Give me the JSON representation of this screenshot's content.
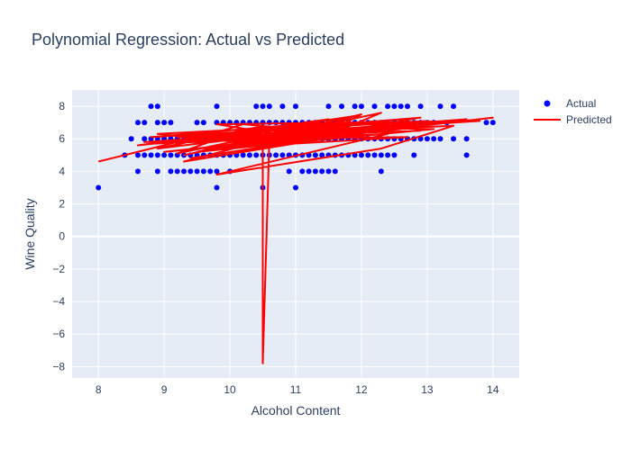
{
  "chart_data": {
    "type": "scatter",
    "title": "Polynomial Regression: Actual vs Predicted",
    "xlabel": "Alcohol Content",
    "ylabel": "Wine Quality",
    "xlim": [
      7.6,
      14.4
    ],
    "ylim": [
      -8.7,
      9.0
    ],
    "xticks": [
      8,
      9,
      10,
      11,
      12,
      13,
      14
    ],
    "yticks": [
      -8,
      -6,
      -4,
      -2,
      0,
      2,
      4,
      6,
      8
    ],
    "grid": true,
    "legend_position": "top-right",
    "series": [
      {
        "name": "Actual",
        "mode": "markers",
        "color": "#0000ff",
        "points": [
          [
            8.0,
            3
          ],
          [
            8.4,
            5
          ],
          [
            8.5,
            6
          ],
          [
            8.6,
            4
          ],
          [
            8.6,
            5
          ],
          [
            8.6,
            7
          ],
          [
            8.7,
            5
          ],
          [
            8.7,
            6
          ],
          [
            8.7,
            7
          ],
          [
            8.8,
            5
          ],
          [
            8.8,
            6
          ],
          [
            8.8,
            8
          ],
          [
            8.9,
            4
          ],
          [
            8.9,
            5
          ],
          [
            8.9,
            6
          ],
          [
            8.9,
            7
          ],
          [
            8.9,
            8
          ],
          [
            9.0,
            5
          ],
          [
            9.0,
            6
          ],
          [
            9.0,
            7
          ],
          [
            9.1,
            5
          ],
          [
            9.1,
            6
          ],
          [
            9.1,
            7
          ],
          [
            9.1,
            4
          ],
          [
            9.2,
            4
          ],
          [
            9.2,
            5
          ],
          [
            9.2,
            6
          ],
          [
            9.3,
            4
          ],
          [
            9.3,
            5
          ],
          [
            9.3,
            6
          ],
          [
            9.4,
            4
          ],
          [
            9.4,
            5
          ],
          [
            9.4,
            6
          ],
          [
            9.5,
            4
          ],
          [
            9.5,
            5
          ],
          [
            9.5,
            6
          ],
          [
            9.5,
            7
          ],
          [
            9.6,
            4
          ],
          [
            9.6,
            5
          ],
          [
            9.6,
            6
          ],
          [
            9.6,
            7
          ],
          [
            9.7,
            4
          ],
          [
            9.7,
            5
          ],
          [
            9.7,
            6
          ],
          [
            9.8,
            3
          ],
          [
            9.8,
            4
          ],
          [
            9.8,
            5
          ],
          [
            9.8,
            6
          ],
          [
            9.8,
            7
          ],
          [
            9.8,
            8
          ],
          [
            9.9,
            5
          ],
          [
            9.9,
            6
          ],
          [
            9.9,
            7
          ],
          [
            10.0,
            4
          ],
          [
            10.0,
            5
          ],
          [
            10.0,
            6
          ],
          [
            10.0,
            7
          ],
          [
            10.1,
            5
          ],
          [
            10.1,
            6
          ],
          [
            10.1,
            7
          ],
          [
            10.2,
            5
          ],
          [
            10.2,
            6
          ],
          [
            10.2,
            7
          ],
          [
            10.3,
            5
          ],
          [
            10.3,
            6
          ],
          [
            10.3,
            7
          ],
          [
            10.4,
            5
          ],
          [
            10.4,
            6
          ],
          [
            10.4,
            7
          ],
          [
            10.4,
            8
          ],
          [
            10.5,
            3
          ],
          [
            10.5,
            5
          ],
          [
            10.5,
            6
          ],
          [
            10.5,
            7
          ],
          [
            10.5,
            8
          ],
          [
            10.6,
            5
          ],
          [
            10.6,
            6
          ],
          [
            10.6,
            7
          ],
          [
            10.6,
            8
          ],
          [
            10.7,
            5
          ],
          [
            10.7,
            6
          ],
          [
            10.7,
            7
          ],
          [
            10.8,
            5
          ],
          [
            10.8,
            6
          ],
          [
            10.8,
            7
          ],
          [
            10.8,
            8
          ],
          [
            10.9,
            4
          ],
          [
            10.9,
            5
          ],
          [
            10.9,
            6
          ],
          [
            10.9,
            7
          ],
          [
            11.0,
            3
          ],
          [
            11.0,
            5
          ],
          [
            11.0,
            6
          ],
          [
            11.0,
            7
          ],
          [
            11.0,
            8
          ],
          [
            11.1,
            4
          ],
          [
            11.1,
            5
          ],
          [
            11.1,
            6
          ],
          [
            11.1,
            7
          ],
          [
            11.2,
            4
          ],
          [
            11.2,
            5
          ],
          [
            11.2,
            6
          ],
          [
            11.2,
            7
          ],
          [
            11.3,
            4
          ],
          [
            11.3,
            5
          ],
          [
            11.3,
            6
          ],
          [
            11.3,
            7
          ],
          [
            11.4,
            4
          ],
          [
            11.4,
            5
          ],
          [
            11.4,
            6
          ],
          [
            11.4,
            7
          ],
          [
            11.5,
            4
          ],
          [
            11.5,
            5
          ],
          [
            11.5,
            6
          ],
          [
            11.5,
            7
          ],
          [
            11.5,
            8
          ],
          [
            11.6,
            4
          ],
          [
            11.6,
            5
          ],
          [
            11.6,
            6
          ],
          [
            11.6,
            7
          ],
          [
            11.7,
            5
          ],
          [
            11.7,
            6
          ],
          [
            11.7,
            7
          ],
          [
            11.7,
            8
          ],
          [
            11.8,
            5
          ],
          [
            11.8,
            6
          ],
          [
            11.8,
            7
          ],
          [
            11.9,
            5
          ],
          [
            11.9,
            6
          ],
          [
            11.9,
            7
          ],
          [
            11.9,
            8
          ],
          [
            12.0,
            5
          ],
          [
            12.0,
            6
          ],
          [
            12.0,
            7
          ],
          [
            12.0,
            8
          ],
          [
            12.1,
            5
          ],
          [
            12.1,
            6
          ],
          [
            12.1,
            7
          ],
          [
            12.2,
            5
          ],
          [
            12.2,
            6
          ],
          [
            12.2,
            7
          ],
          [
            12.2,
            8
          ],
          [
            12.3,
            4
          ],
          [
            12.3,
            5
          ],
          [
            12.3,
            6
          ],
          [
            12.3,
            7
          ],
          [
            12.4,
            5
          ],
          [
            12.4,
            6
          ],
          [
            12.4,
            7
          ],
          [
            12.4,
            8
          ],
          [
            12.5,
            5
          ],
          [
            12.5,
            6
          ],
          [
            12.5,
            7
          ],
          [
            12.5,
            8
          ],
          [
            12.6,
            6
          ],
          [
            12.6,
            7
          ],
          [
            12.6,
            8
          ],
          [
            12.7,
            6
          ],
          [
            12.7,
            7
          ],
          [
            12.7,
            8
          ],
          [
            12.8,
            5
          ],
          [
            12.8,
            6
          ],
          [
            12.8,
            7
          ],
          [
            12.9,
            6
          ],
          [
            12.9,
            7
          ],
          [
            12.9,
            8
          ],
          [
            13.0,
            6
          ],
          [
            13.0,
            7
          ],
          [
            13.1,
            6
          ],
          [
            13.1,
            7
          ],
          [
            13.2,
            6
          ],
          [
            13.2,
            8
          ],
          [
            13.3,
            7
          ],
          [
            13.4,
            6
          ],
          [
            13.4,
            8
          ],
          [
            13.6,
            5
          ],
          [
            13.6,
            6
          ],
          [
            13.9,
            7
          ],
          [
            14.0,
            7
          ]
        ]
      },
      {
        "name": "Predicted",
        "mode": "lines",
        "color": "#ff0000",
        "points": [
          [
            8.0,
            4.6
          ],
          [
            8.7,
            5.3
          ],
          [
            9.3,
            5.9
          ],
          [
            8.6,
            5.6
          ],
          [
            10.1,
            6.4
          ],
          [
            9.2,
            5.1
          ],
          [
            11.3,
            6.9
          ],
          [
            9.0,
            5.8
          ],
          [
            12.6,
            6.6
          ],
          [
            9.6,
            5.3
          ],
          [
            10.8,
            6.8
          ],
          [
            8.8,
            6.1
          ],
          [
            13.0,
            7.1
          ],
          [
            9.4,
            4.8
          ],
          [
            11.8,
            6.3
          ],
          [
            10.2,
            6.9
          ],
          [
            9.1,
            5.5
          ],
          [
            12.2,
            7.0
          ],
          [
            8.9,
            6.3
          ],
          [
            10.6,
            5.6
          ],
          [
            13.6,
            7.2
          ],
          [
            9.7,
            6.0
          ],
          [
            11.0,
            6.4
          ],
          [
            9.3,
            4.6
          ],
          [
            12.8,
            6.9
          ],
          [
            10.0,
            5.6
          ],
          [
            11.5,
            7.2
          ],
          [
            8.8,
            5.7
          ],
          [
            12.4,
            6.3
          ],
          [
            9.8,
            3.8
          ],
          [
            12.3,
            5.4
          ],
          [
            13.4,
            6.8
          ],
          [
            10.5,
            6.3
          ],
          [
            10.5,
            -7.8
          ],
          [
            10.6,
            5.9
          ],
          [
            11.2,
            5.8
          ],
          [
            12.0,
            7.5
          ],
          [
            9.5,
            5.2
          ],
          [
            13.1,
            6.6
          ],
          [
            10.4,
            6.7
          ],
          [
            8.9,
            5.4
          ],
          [
            11.7,
            6.8
          ],
          [
            10.9,
            5.9
          ],
          [
            12.9,
            7.3
          ],
          [
            9.2,
            6.1
          ],
          [
            11.4,
            6.1
          ],
          [
            14.0,
            7.3
          ],
          [
            9.9,
            5.4
          ],
          [
            12.5,
            6.7
          ],
          [
            10.3,
            6.1
          ],
          [
            11.1,
            6.7
          ],
          [
            9.4,
            5.9
          ],
          [
            12.1,
            6.4
          ],
          [
            9.0,
            5.2
          ],
          [
            13.2,
            7.0
          ],
          [
            10.7,
            5.8
          ],
          [
            11.9,
            7.4
          ],
          [
            9.6,
            6.0
          ],
          [
            12.7,
            6.1
          ],
          [
            10.1,
            5.5
          ],
          [
            11.6,
            6.6
          ],
          [
            8.7,
            5.8
          ],
          [
            13.8,
            7.1
          ],
          [
            9.8,
            6.9
          ],
          [
            11.3,
            5.9
          ],
          [
            12.3,
            7.6
          ],
          [
            9.3,
            5.0
          ],
          [
            10.8,
            6.2
          ],
          [
            12.9,
            6.5
          ]
        ]
      }
    ]
  }
}
